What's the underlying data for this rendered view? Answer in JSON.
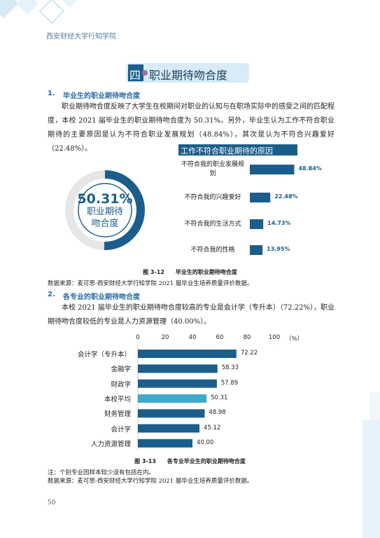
{
  "header": {
    "school": "西安财经大学行知学院"
  },
  "section": {
    "number": "四",
    "title": "职业期待吻合度"
  },
  "subsections": [
    {
      "number": "1.",
      "title": "毕业生的职业期待吻合度",
      "paragraph": "职业期待吻合度反映了大学生在校期间对职业的认知与在职场实际中的感受之间的匹配程度，本校 2021 届毕业生的职业期待吻合度为 50.31%。另外，毕业生认为工作不符合职业期待的主要原因是认为不符合职业发展规划（48.84%），其次是认为不符合兴趣爱好（22.48%）。"
    },
    {
      "number": "2.",
      "title": "各专业的职业期待吻合度",
      "paragraph": "本校 2021 届毕业生的职业期待吻合度较高的专业是会计学（专升本）（72.22%），职业期待吻合度较低的专业是人力资源管理（40.00%）。"
    }
  ],
  "chart_data": [
    {
      "type": "donut",
      "value": 50.31,
      "value_label": "50.31%",
      "label": "职业期待吻合度",
      "color": "#1b5e8c",
      "track_color": "#e4e6e8"
    },
    {
      "type": "bar",
      "orientation": "horizontal",
      "title": "工作不符合职业期待的原因",
      "categories": [
        "不符合我的职业发展规划",
        "不符合我的兴趣爱好",
        "不符合我的生活方式",
        "不符合我的性格"
      ],
      "values": [
        48.84,
        22.48,
        14.73,
        13.95
      ],
      "value_labels": [
        "48.84%",
        "22.48%",
        "14.73%",
        "13.95%"
      ],
      "color": "#1b5e8c"
    },
    {
      "type": "bar",
      "orientation": "horizontal",
      "xlabel": "（%）",
      "categories": [
        "会计学（专升本）",
        "金融学",
        "财政学",
        "本校平均",
        "财务管理",
        "会计学",
        "人力资源管理"
      ],
      "values": [
        72.22,
        58.33,
        57.89,
        50.31,
        48.98,
        45.12,
        40.0
      ],
      "value_labels": [
        "72.22",
        "58.33",
        "57.89",
        "50.31",
        "48.98",
        "45.12",
        "40.00"
      ],
      "colors": [
        "#1b5e8c",
        "#1b5e8c",
        "#1b5e8c",
        "#3fa9c9",
        "#1b5e8c",
        "#1b5e8c",
        "#1b5e8c"
      ],
      "xlim": [
        0,
        100
      ],
      "xticks": [
        0,
        20,
        40,
        60,
        80,
        100
      ]
    }
  ],
  "figures": [
    {
      "caption": "图 3-12　　毕业生的职业期待吻合度",
      "source": "数据来源：麦可思-西安财经大学行知学院 2021 届毕业生培养质量评价数据。"
    },
    {
      "caption": "图 3-13　　各专业毕业生的职业期待吻合度",
      "note": "注：个别专业因样本较少没有包括在内。",
      "source": "数据来源：麦可思-西安财经大学行知学院 2021 届毕业生培养质量评价数据。"
    }
  ],
  "page_number": "50"
}
